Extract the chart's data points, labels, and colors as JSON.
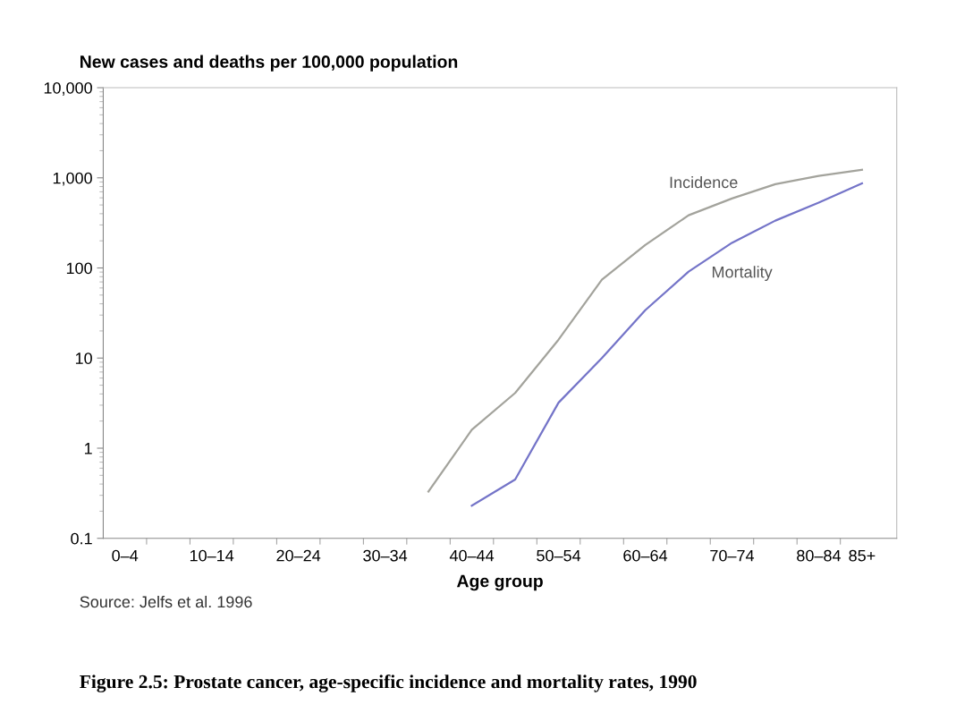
{
  "chart_data": {
    "type": "line",
    "title": "Figure 2.5: Prostate cancer, age-specific incidence and mortality rates, 1990",
    "ylabel": "New cases and deaths per 100,000 population",
    "xlabel": "Age group",
    "annotations": [
      "Source: Jelfs et al. 1996"
    ],
    "categories": [
      "0–4",
      null,
      "10–14",
      null,
      "20–24",
      null,
      "30–34",
      null,
      "40–44",
      null,
      "50–54",
      null,
      "60–64",
      null,
      "70–74",
      null,
      "80–84",
      "85+"
    ],
    "series": [
      {
        "name": "Incidence",
        "color": "#a3a39c",
        "values": [
          null,
          null,
          null,
          null,
          null,
          null,
          null,
          0.33,
          1.6,
          4.1,
          16,
          74,
          180,
          384,
          590,
          850,
          1050,
          1230
        ]
      },
      {
        "name": "Mortality",
        "color": "#7474c8",
        "values": [
          null,
          null,
          null,
          null,
          null,
          null,
          null,
          null,
          0.23,
          0.45,
          3.2,
          10,
          34,
          91,
          190,
          335,
          530,
          870
        ]
      }
    ],
    "log": "y",
    "ylim": [
      0.1,
      10000
    ],
    "yticks": [
      {
        "value": 0.1,
        "label": "0.1"
      },
      1,
      10,
      100,
      {
        "value": 1000,
        "label": "1,000"
      },
      {
        "value": 10000,
        "label": "10,000"
      }
    ],
    "grid": false,
    "legend": false,
    "marker": "none",
    "line_style": "solid"
  }
}
